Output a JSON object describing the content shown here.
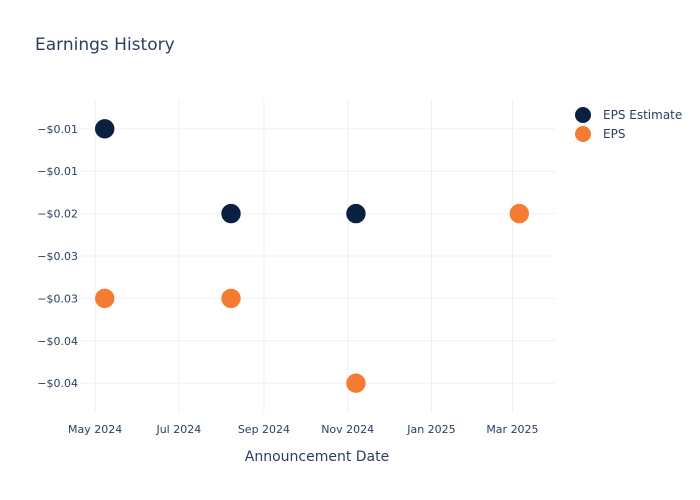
{
  "chart_data": {
    "type": "scatter",
    "title": "Earnings History",
    "xlabel": "Announcement Date",
    "ylabel": "",
    "x_ticks": [
      {
        "date": "2024-05-01",
        "label": "May 2024"
      },
      {
        "date": "2024-07-01",
        "label": "Jul 2024"
      },
      {
        "date": "2024-09-01",
        "label": "Sep 2024"
      },
      {
        "date": "2024-11-01",
        "label": "Nov 2024"
      },
      {
        "date": "2025-01-01",
        "label": "Jan 2025"
      },
      {
        "date": "2025-03-01",
        "label": "Mar 2025"
      }
    ],
    "xlim": [
      "2024-04-20",
      "2025-04-01"
    ],
    "y_ticks": [
      {
        "value": -0.01,
        "label": "−$0.01"
      },
      {
        "value": -0.015,
        "label": "−$0.01"
      },
      {
        "value": -0.02,
        "label": "−$0.02"
      },
      {
        "value": -0.025,
        "label": "−$0.03"
      },
      {
        "value": -0.03,
        "label": "−$0.03"
      },
      {
        "value": -0.035,
        "label": "−$0.04"
      },
      {
        "value": -0.04,
        "label": "−$0.04"
      }
    ],
    "ylim": [
      -0.0434,
      -0.0066
    ],
    "grid": true,
    "legend_position": "top-right",
    "series": [
      {
        "name": "EPS Estimate",
        "color": "#0b1f40",
        "points": [
          {
            "x": "2024-05-08",
            "y": -0.01
          },
          {
            "x": "2024-08-08",
            "y": -0.02
          },
          {
            "x": "2024-11-07",
            "y": -0.02
          },
          {
            "x": "2025-03-06",
            "y": -0.02
          }
        ]
      },
      {
        "name": "EPS",
        "color": "#f47b32",
        "points": [
          {
            "x": "2024-05-08",
            "y": -0.03
          },
          {
            "x": "2024-08-08",
            "y": -0.03
          },
          {
            "x": "2024-11-07",
            "y": -0.04
          },
          {
            "x": "2025-03-06",
            "y": -0.02
          }
        ]
      }
    ]
  }
}
